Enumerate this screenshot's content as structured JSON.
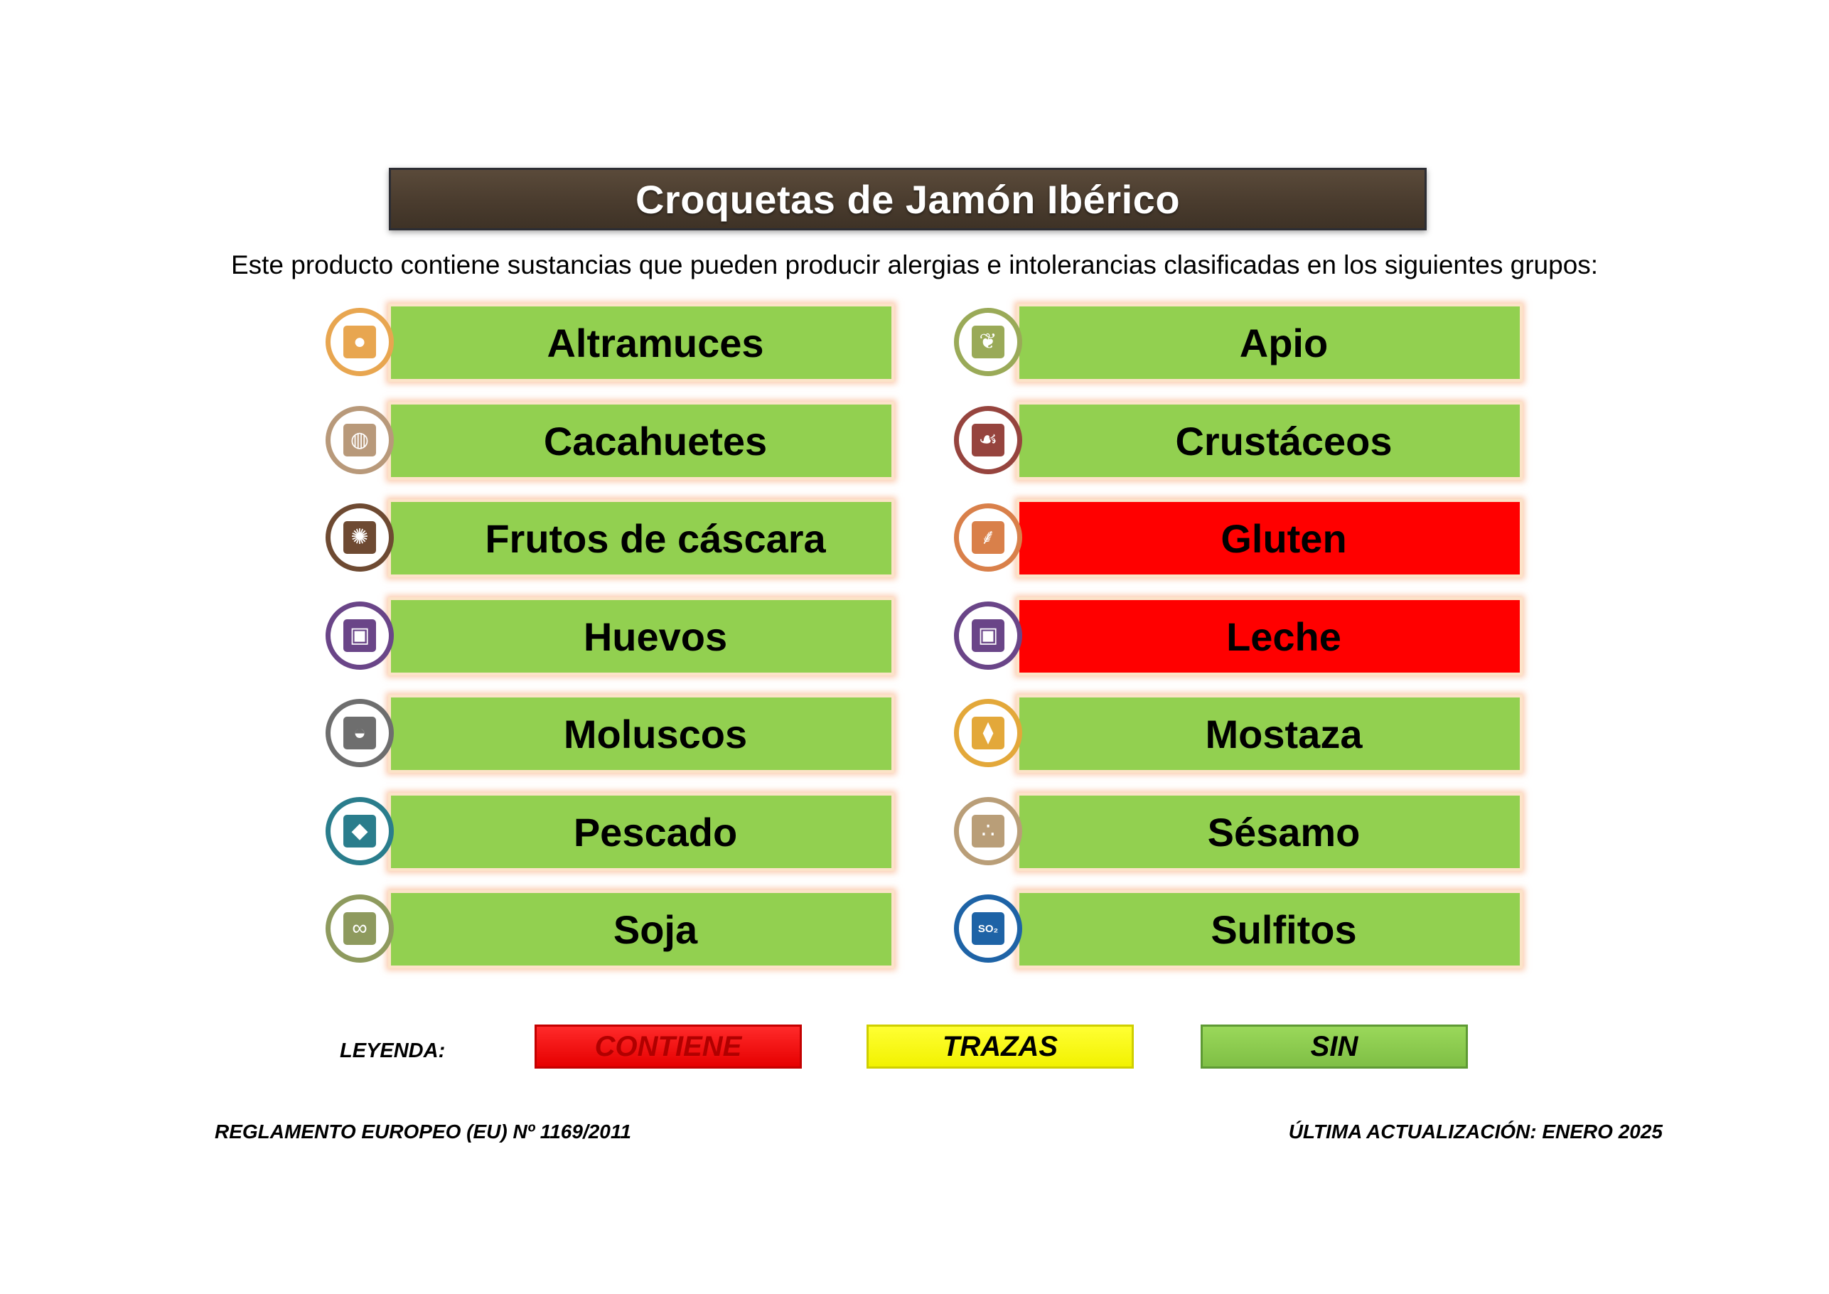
{
  "title": "Croquetas de Jamón Ibérico",
  "subtitle": "Este producto contiene sustancias que pueden producir alergias e intolerancias clasificadas en los siguientes grupos:",
  "allergens": [
    {
      "name": "Altramuces",
      "status": "sin",
      "icon": "lupin-icon",
      "color": "#e8a650"
    },
    {
      "name": "Apio",
      "status": "sin",
      "icon": "celery-icon",
      "color": "#9aaa58"
    },
    {
      "name": "Cacahuetes",
      "status": "sin",
      "icon": "peanut-icon",
      "color": "#b8997a"
    },
    {
      "name": "Crustáceos",
      "status": "sin",
      "icon": "crustacean-icon",
      "color": "#96443e"
    },
    {
      "name": "Frutos de cáscara",
      "status": "sin",
      "icon": "nut-icon",
      "color": "#6e4a32"
    },
    {
      "name": "Gluten",
      "status": "contiene",
      "icon": "wheat-icon",
      "color": "#d9804a"
    },
    {
      "name": "Huevos",
      "status": "sin",
      "icon": "egg-icon",
      "color": "#6a4588"
    },
    {
      "name": "Leche",
      "status": "contiene",
      "icon": "milk-icon",
      "color": "#6a4588"
    },
    {
      "name": "Moluscos",
      "status": "sin",
      "icon": "mollusc-icon",
      "color": "#6e6e6e"
    },
    {
      "name": "Mostaza",
      "status": "sin",
      "icon": "mustard-icon",
      "color": "#e3a83a"
    },
    {
      "name": "Pescado",
      "status": "sin",
      "icon": "fish-icon",
      "color": "#2a7d8c"
    },
    {
      "name": "Sésamo",
      "status": "sin",
      "icon": "sesame-icon",
      "color": "#b99e78"
    },
    {
      "name": "Soja",
      "status": "sin",
      "icon": "soy-icon",
      "color": "#8e9a5e"
    },
    {
      "name": "Sulfitos",
      "status": "sin",
      "icon": "sulphite-icon",
      "color": "#1e63a6"
    }
  ],
  "legend": {
    "label": "LEYENDA:",
    "contiene": "CONTIENE",
    "trazas": "TRAZAS",
    "sin": "SIN"
  },
  "status_colors": {
    "contiene": "#ff0000",
    "trazas": "#ffff00",
    "sin": "#92d050"
  },
  "footer": {
    "regulation": "REGLAMENTO EUROPEO (EU) Nº 1169/2011",
    "updated": "ÚLTIMA ACTUALIZACIÓN: ENERO 2025"
  }
}
